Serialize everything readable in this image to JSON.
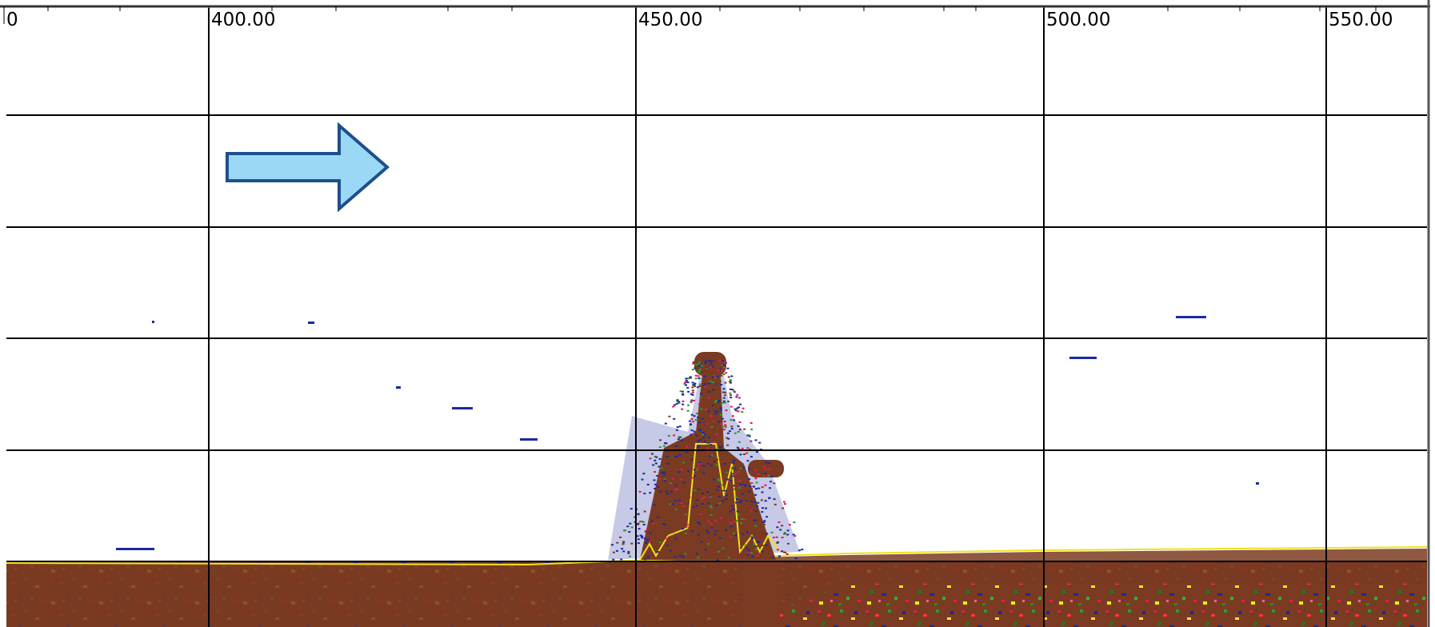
{
  "axis": {
    "labels": [
      "0",
      "400.00",
      "450.00",
      "500.00",
      "550.00"
    ]
  }
}
